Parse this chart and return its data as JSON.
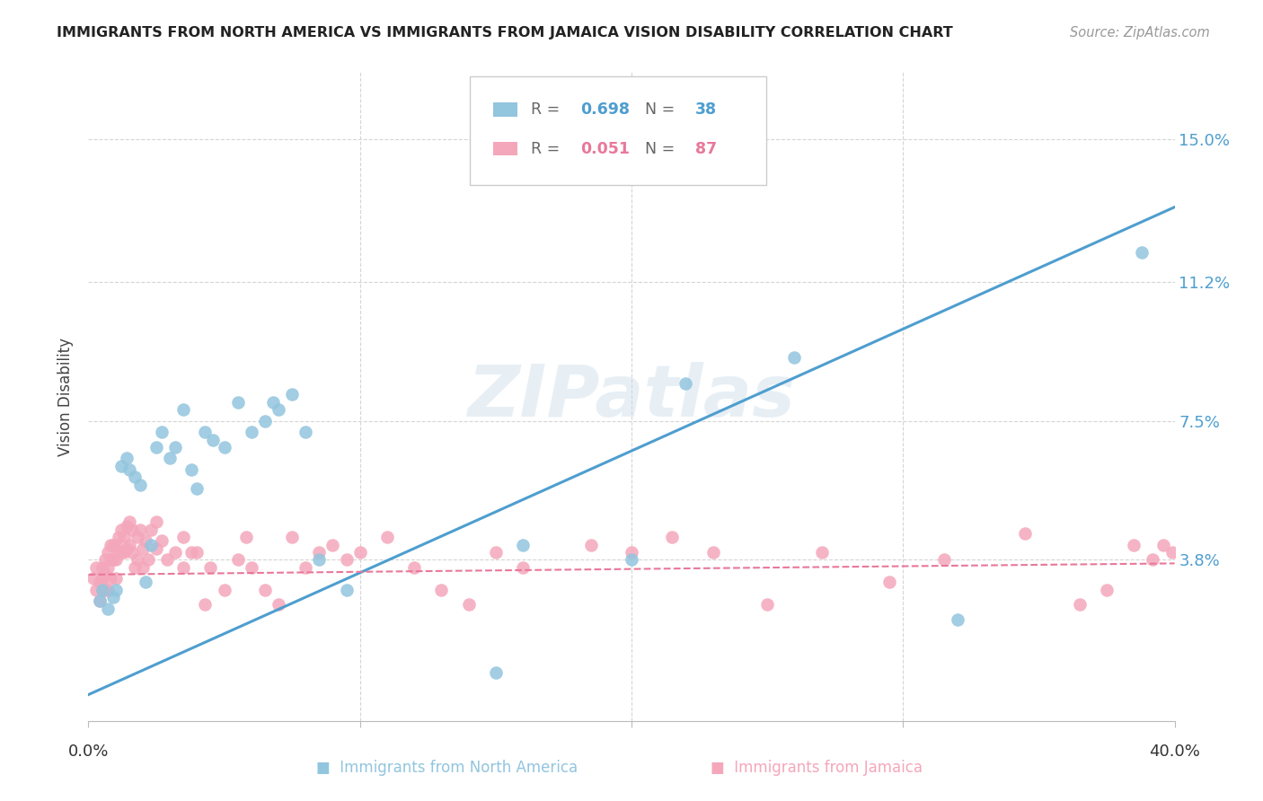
{
  "title": "IMMIGRANTS FROM NORTH AMERICA VS IMMIGRANTS FROM JAMAICA VISION DISABILITY CORRELATION CHART",
  "source": "Source: ZipAtlas.com",
  "ylabel": "Vision Disability",
  "xlim": [
    0.0,
    0.4
  ],
  "ylim": [
    -0.005,
    0.168
  ],
  "ytick_values": [
    0.038,
    0.075,
    0.112,
    0.15
  ],
  "ytick_labels": [
    "3.8%",
    "7.5%",
    "11.2%",
    "15.0%"
  ],
  "blue_R": 0.698,
  "blue_N": 38,
  "pink_R": 0.051,
  "pink_N": 87,
  "blue_scatter_color": "#92c5de",
  "pink_scatter_color": "#f4a7bb",
  "blue_line_color": "#4e9ecf",
  "pink_line_color": "#e8789a",
  "watermark": "ZIPatlas",
  "legend_label_blue": "Immigrants from North America",
  "legend_label_pink": "Immigrants from Jamaica",
  "blue_line_x0": 0.0,
  "blue_line_y0": 0.002,
  "blue_line_x1": 0.4,
  "blue_line_y1": 0.132,
  "pink_line_x0": 0.0,
  "pink_line_y0": 0.034,
  "pink_line_x1": 0.4,
  "pink_line_y1": 0.037,
  "blue_x": [
    0.004,
    0.005,
    0.007,
    0.009,
    0.01,
    0.012,
    0.014,
    0.015,
    0.017,
    0.019,
    0.021,
    0.023,
    0.025,
    0.027,
    0.03,
    0.032,
    0.035,
    0.038,
    0.04,
    0.043,
    0.046,
    0.05,
    0.055,
    0.06,
    0.065,
    0.068,
    0.07,
    0.075,
    0.08,
    0.085,
    0.095,
    0.15,
    0.16,
    0.2,
    0.22,
    0.26,
    0.32,
    0.388
  ],
  "blue_y": [
    0.027,
    0.03,
    0.025,
    0.028,
    0.03,
    0.063,
    0.065,
    0.062,
    0.06,
    0.058,
    0.032,
    0.042,
    0.068,
    0.072,
    0.065,
    0.068,
    0.078,
    0.062,
    0.057,
    0.072,
    0.07,
    0.068,
    0.08,
    0.072,
    0.075,
    0.08,
    0.078,
    0.082,
    0.072,
    0.038,
    0.03,
    0.008,
    0.042,
    0.038,
    0.085,
    0.092,
    0.022,
    0.12
  ],
  "pink_x": [
    0.002,
    0.003,
    0.003,
    0.004,
    0.004,
    0.005,
    0.005,
    0.005,
    0.006,
    0.006,
    0.006,
    0.007,
    0.007,
    0.007,
    0.008,
    0.008,
    0.008,
    0.009,
    0.009,
    0.01,
    0.01,
    0.01,
    0.011,
    0.011,
    0.012,
    0.012,
    0.013,
    0.013,
    0.014,
    0.014,
    0.015,
    0.015,
    0.016,
    0.016,
    0.017,
    0.018,
    0.018,
    0.019,
    0.02,
    0.02,
    0.021,
    0.022,
    0.023,
    0.025,
    0.025,
    0.027,
    0.029,
    0.032,
    0.035,
    0.035,
    0.038,
    0.04,
    0.043,
    0.045,
    0.05,
    0.055,
    0.058,
    0.06,
    0.065,
    0.07,
    0.075,
    0.08,
    0.085,
    0.09,
    0.095,
    0.1,
    0.11,
    0.12,
    0.13,
    0.14,
    0.15,
    0.16,
    0.185,
    0.2,
    0.215,
    0.23,
    0.25,
    0.27,
    0.295,
    0.315,
    0.345,
    0.365,
    0.375,
    0.385,
    0.392,
    0.396,
    0.399
  ],
  "pink_y": [
    0.033,
    0.03,
    0.036,
    0.032,
    0.027,
    0.033,
    0.036,
    0.03,
    0.038,
    0.034,
    0.03,
    0.04,
    0.036,
    0.03,
    0.042,
    0.038,
    0.033,
    0.042,
    0.038,
    0.042,
    0.038,
    0.033,
    0.044,
    0.04,
    0.046,
    0.04,
    0.044,
    0.04,
    0.047,
    0.041,
    0.048,
    0.042,
    0.046,
    0.04,
    0.036,
    0.044,
    0.038,
    0.046,
    0.041,
    0.036,
    0.043,
    0.038,
    0.046,
    0.041,
    0.048,
    0.043,
    0.038,
    0.04,
    0.036,
    0.044,
    0.04,
    0.04,
    0.026,
    0.036,
    0.03,
    0.038,
    0.044,
    0.036,
    0.03,
    0.026,
    0.044,
    0.036,
    0.04,
    0.042,
    0.038,
    0.04,
    0.044,
    0.036,
    0.03,
    0.026,
    0.04,
    0.036,
    0.042,
    0.04,
    0.044,
    0.04,
    0.026,
    0.04,
    0.032,
    0.038,
    0.045,
    0.026,
    0.03,
    0.042,
    0.038,
    0.042,
    0.04
  ]
}
